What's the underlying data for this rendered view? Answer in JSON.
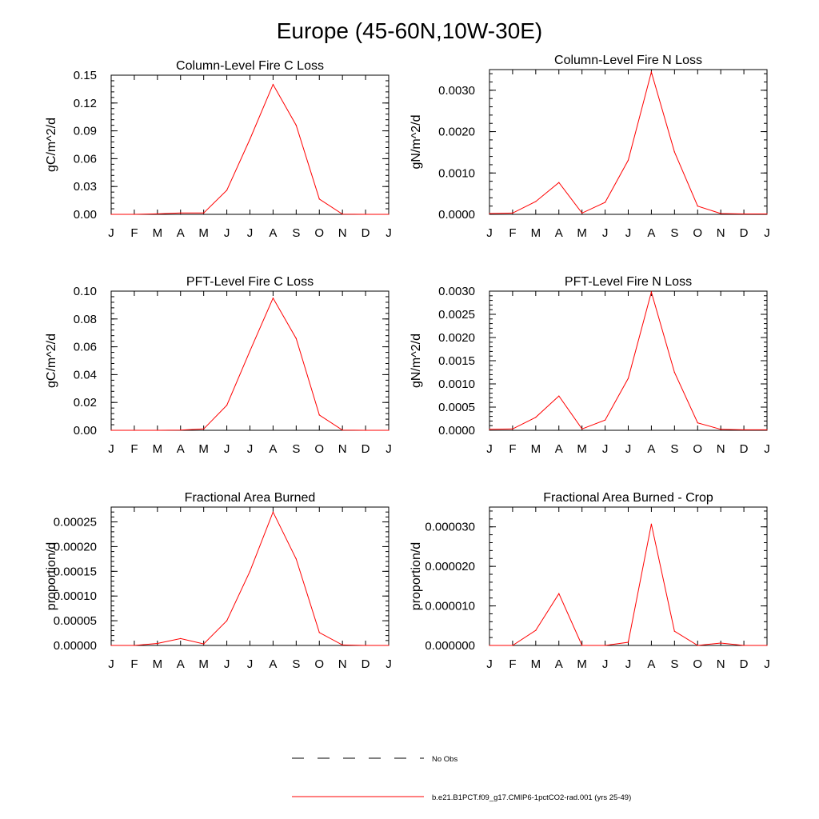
{
  "page_title": "Europe (45-60N,10W-30E)",
  "series_color": "#ff0000",
  "legend": [
    {
      "label": "No Obs",
      "style": "dashed",
      "color": "#000000"
    },
    {
      "label": "b.e21.B1PCT.f09_g17.CMIP6-1pctCO2-rad.001 (yrs 25-49)",
      "style": "solid",
      "color": "#ff0000"
    }
  ],
  "chart_data": [
    {
      "type": "line",
      "title": "Column-Level Fire C Loss",
      "ylabel": "gC/m^2/d",
      "categories": [
        "J",
        "F",
        "M",
        "A",
        "M",
        "J",
        "J",
        "A",
        "S",
        "O",
        "N",
        "D",
        "J"
      ],
      "ylim": [
        0,
        0.15
      ],
      "yticks": [
        "0.00",
        "0.03",
        "0.06",
        "0.09",
        "0.12",
        "0.15"
      ],
      "ytick_values": [
        0,
        0.03,
        0.06,
        0.09,
        0.12,
        0.15
      ],
      "series": [
        {
          "values": [
            0,
            0,
            0.0005,
            0.0015,
            0.0015,
            0.026,
            0.081,
            0.14,
            0.096,
            0.0165,
            0.0002,
            0,
            0
          ]
        }
      ]
    },
    {
      "type": "line",
      "title": "Column-Level Fire N Loss",
      "ylabel": "gN/m^2/d",
      "categories": [
        "J",
        "F",
        "M",
        "A",
        "M",
        "J",
        "J",
        "A",
        "S",
        "O",
        "N",
        "D",
        "J"
      ],
      "ylim": [
        0,
        0.0035
      ],
      "yticks": [
        "0.0000",
        "0.0010",
        "0.0020",
        "0.0030"
      ],
      "ytick_values": [
        0,
        0.001,
        0.002,
        0.003
      ],
      "series": [
        {
          "values": [
            2e-05,
            3e-05,
            0.00031,
            0.00077,
            3e-05,
            0.00029,
            0.00131,
            0.00344,
            0.00151,
            0.0002,
            2e-05,
            1e-05,
            1e-05
          ]
        }
      ]
    },
    {
      "type": "line",
      "title": "PFT-Level Fire C Loss",
      "ylabel": "gC/m^2/d",
      "categories": [
        "J",
        "F",
        "M",
        "A",
        "M",
        "J",
        "J",
        "A",
        "S",
        "O",
        "N",
        "D",
        "J"
      ],
      "ylim": [
        0,
        0.1
      ],
      "yticks": [
        "0.00",
        "0.02",
        "0.04",
        "0.06",
        "0.08",
        "0.10"
      ],
      "ytick_values": [
        0,
        0.02,
        0.04,
        0.06,
        0.08,
        0.1
      ],
      "series": [
        {
          "values": [
            0,
            0,
            0,
            0.0002,
            0.001,
            0.018,
            0.057,
            0.095,
            0.066,
            0.011,
            0.0001,
            0,
            0
          ]
        }
      ]
    },
    {
      "type": "line",
      "title": "PFT-Level Fire N Loss",
      "ylabel": "gN/m^2/d",
      "categories": [
        "J",
        "F",
        "M",
        "A",
        "M",
        "J",
        "J",
        "A",
        "S",
        "O",
        "N",
        "D",
        "J"
      ],
      "ylim": [
        0,
        0.003
      ],
      "yticks": [
        "0.0000",
        "0.0005",
        "0.0010",
        "0.0015",
        "0.0020",
        "0.0025",
        "0.0030"
      ],
      "ytick_values": [
        0,
        0.0005,
        0.001,
        0.0015,
        0.002,
        0.0025,
        0.003
      ],
      "series": [
        {
          "values": [
            2e-05,
            3e-05,
            0.00028,
            0.00074,
            3e-05,
            0.00022,
            0.00112,
            0.00298,
            0.00125,
            0.00016,
            2e-05,
            1e-05,
            1e-05
          ]
        }
      ]
    },
    {
      "type": "line",
      "title": "Fractional Area Burned",
      "ylabel": "proportion/d",
      "categories": [
        "J",
        "F",
        "M",
        "A",
        "M",
        "J",
        "J",
        "A",
        "S",
        "O",
        "N",
        "D",
        "J"
      ],
      "ylim": [
        0,
        0.00028
      ],
      "yticks": [
        "0.00000",
        "0.00005",
        "0.00010",
        "0.00015",
        "0.00020",
        "0.00025"
      ],
      "ytick_values": [
        0,
        5e-05,
        0.0001,
        0.00015,
        0.0002,
        0.00025
      ],
      "series": [
        {
          "values": [
            0,
            0,
            4e-06,
            1.4e-05,
            3e-06,
            5e-05,
            0.00015,
            0.00027,
            0.000175,
            2.6e-05,
            1e-06,
            0,
            0
          ]
        }
      ]
    },
    {
      "type": "line",
      "title": "Fractional Area Burned - Crop",
      "ylabel": "proportion/d",
      "categories": [
        "J",
        "F",
        "M",
        "A",
        "M",
        "J",
        "J",
        "A",
        "S",
        "O",
        "N",
        "D",
        "J"
      ],
      "ylim": [
        0,
        3.5e-05
      ],
      "yticks": [
        "0.000000",
        "0.000010",
        "0.000020",
        "0.000030"
      ],
      "ytick_values": [
        0,
        1e-05,
        2e-05,
        3e-05
      ],
      "series": [
        {
          "values": [
            0,
            0,
            3.8e-06,
            1.31e-05,
            0,
            0,
            8e-07,
            3.07e-05,
            3.6e-06,
            0,
            6e-07,
            0,
            0
          ]
        }
      ]
    }
  ]
}
